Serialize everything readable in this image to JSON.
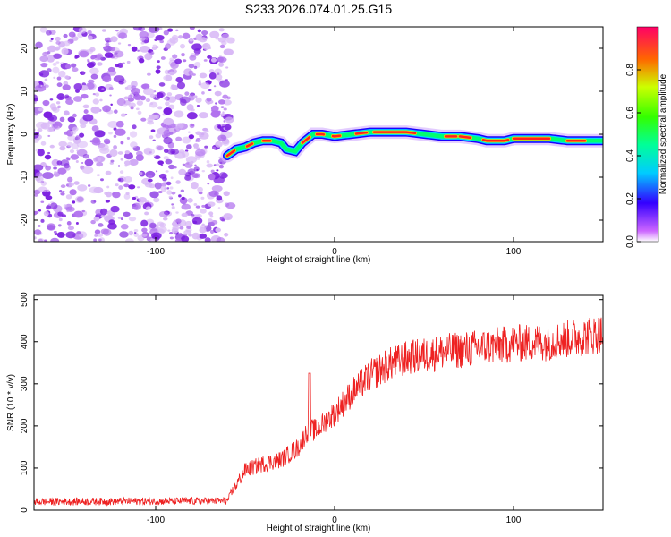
{
  "title": "S233.2026.074.01.25.G15",
  "colors": {
    "noise": "#8a2be2",
    "snr_line": "#ee2222",
    "trace_core": "#ff2020",
    "trace_mid": "#00ff70",
    "trace_outer": "#1a00ff"
  },
  "chart_data": [
    {
      "type": "heatmap",
      "name": "spectrogram",
      "xlabel": "Height of straight line (km)",
      "ylabel": "Frequency (Hz)",
      "xlim": [
        -168,
        150
      ],
      "ylim": [
        -25,
        25
      ],
      "xticks": [
        -100,
        0,
        100
      ],
      "yticks": [
        -20,
        -10,
        0,
        10,
        20
      ],
      "noise_region_x": [
        -168,
        -60
      ],
      "trace": {
        "x": [
          -60,
          -55,
          -50,
          -45,
          -40,
          -35,
          -30,
          -27,
          -22,
          -18,
          -12,
          -7,
          0,
          10,
          20,
          30,
          40,
          50,
          60,
          70,
          80,
          85,
          95,
          100,
          110,
          120,
          130,
          140,
          150
        ],
        "y": [
          -5,
          -3.5,
          -3,
          -2,
          -1.5,
          -1.5,
          -2,
          -3.5,
          -4,
          -2,
          0,
          0,
          -0.5,
          0,
          0.5,
          0.5,
          0.5,
          0,
          -0.5,
          -0.5,
          -1,
          -1.5,
          -1.5,
          -1,
          -1,
          -1,
          -1.5,
          -1.5,
          -1.5
        ]
      },
      "colorbar": {
        "label": "Normalized spectral amplitude",
        "ticks": [
          "0.0",
          "0.2",
          "0.4",
          "0.6",
          "0.8"
        ],
        "range": [
          0,
          1
        ]
      }
    },
    {
      "type": "line",
      "name": "snr",
      "xlabel": "Height of straight line (km)",
      "ylabel": "SNR (10 * v/v)",
      "xlim": [
        -168,
        150
      ],
      "ylim": [
        0,
        510
      ],
      "xticks": [
        -100,
        0,
        100
      ],
      "yticks": [
        0,
        100,
        200,
        300,
        400,
        500
      ],
      "trend": {
        "x": [
          -168,
          -60,
          -55,
          -50,
          -40,
          -30,
          -20,
          -15,
          -10,
          0,
          10,
          20,
          30,
          40,
          60,
          80,
          100,
          120,
          150
        ],
        "y": [
          20,
          22,
          60,
          95,
          110,
          120,
          150,
          190,
          190,
          230,
          280,
          320,
          345,
          360,
          375,
          385,
          395,
          400,
          420
        ]
      },
      "spike": {
        "x": -14,
        "y": 325
      }
    }
  ]
}
